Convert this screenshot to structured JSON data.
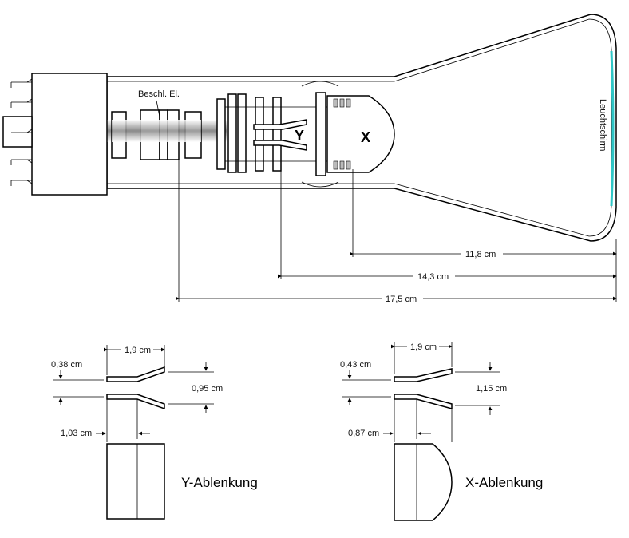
{
  "tube": {
    "label_accel_electrode": "Beschl. El.",
    "label_y_plates": "Y",
    "label_x_plates": "X",
    "label_screen": "Leuchtschirm",
    "screen_color": "#2fc6c6",
    "dim_x_to_screen": "11,8 cm",
    "dim_y_to_screen": "14,3 cm",
    "dim_accel_to_screen": "17,5 cm"
  },
  "y_deflection": {
    "title": "Y-Ablenkung",
    "dim_length": "1,9 cm",
    "dim_gap_start": "0,38 cm",
    "dim_gap_end": "0,95 cm",
    "dim_straight": "1,03 cm"
  },
  "x_deflection": {
    "title": "X-Ablenkung",
    "dim_length": "1,9 cm",
    "dim_gap_start": "0,43 cm",
    "dim_gap_end": "1,15 cm",
    "dim_straight": "0,87 cm"
  }
}
